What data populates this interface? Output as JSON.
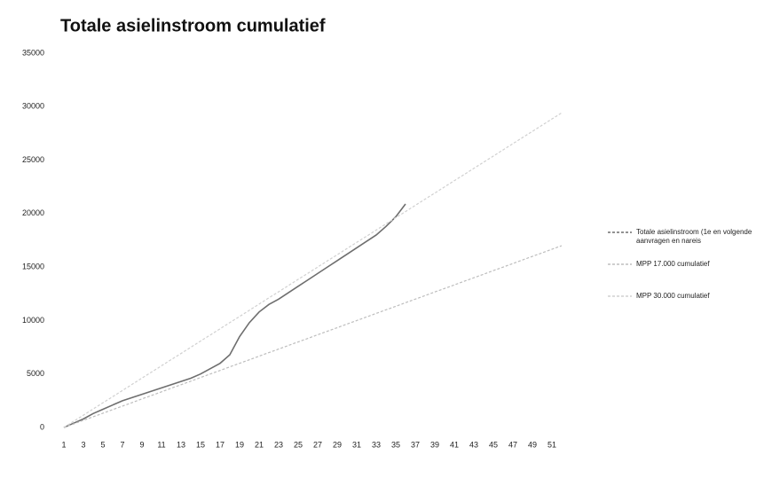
{
  "chart_data": {
    "type": "line",
    "title": "Totale asielinstroom cumulatief",
    "categories": [
      1,
      null,
      3,
      null,
      5,
      null,
      7,
      null,
      9,
      null,
      11,
      null,
      13,
      null,
      15,
      null,
      17,
      null,
      19,
      null,
      21,
      null,
      23,
      null,
      25,
      null,
      27,
      null,
      29,
      null,
      31,
      null,
      33,
      null,
      35,
      null,
      37,
      null,
      39,
      null,
      41,
      null,
      43,
      null,
      45,
      null,
      47,
      null,
      49,
      null,
      51,
      null
    ],
    "series": [
      {
        "name": "Totale asielinstroom (1e en volgende aanvragen en nareis",
        "color": "#6e6e6e",
        "values": [
          0,
          400,
          800,
          1300,
          1700,
          2100,
          2500,
          2800,
          3100,
          3400,
          3700,
          4000,
          4300,
          4600,
          5000,
          5500,
          6000,
          6800,
          8500,
          9800,
          10800,
          11500,
          12000,
          12600,
          13200,
          13800,
          14400,
          15000,
          15600,
          16200,
          16800,
          17400,
          18000,
          18800,
          19700,
          20900,
          null,
          null,
          null,
          null,
          null,
          null,
          null,
          null,
          null,
          null,
          null,
          null,
          null,
          null,
          null,
          null
        ]
      },
      {
        "name": "MPP 17.000 cumulatief",
        "color": "#bdbdbd",
        "values": [
          0,
          330,
          670,
          1000,
          1330,
          1670,
          2000,
          2330,
          2670,
          3000,
          3330,
          3670,
          4000,
          4330,
          4670,
          5000,
          5330,
          5670,
          6000,
          6330,
          6670,
          7000,
          7330,
          7670,
          8000,
          8330,
          8670,
          9000,
          9330,
          9670,
          10000,
          10330,
          10670,
          11000,
          11330,
          11670,
          12000,
          12330,
          12670,
          13000,
          13330,
          13670,
          14000,
          14330,
          14670,
          15000,
          15330,
          15670,
          16000,
          16330,
          16670,
          17000
        ]
      },
      {
        "name": "MPP 30.000 cumulatief",
        "color": "#d0d0d0",
        "values": [
          0,
          580,
          1150,
          1730,
          2310,
          2880,
          3460,
          4040,
          4620,
          5190,
          5770,
          6350,
          6920,
          7500,
          8080,
          8650,
          9230,
          9810,
          10380,
          10960,
          11540,
          12120,
          12690,
          13270,
          13850,
          14420,
          15000,
          15580,
          16150,
          16730,
          17310,
          17880,
          18460,
          19040,
          19620,
          20190,
          20770,
          21350,
          21920,
          22500,
          23080,
          23650,
          24230,
          24810,
          25380,
          25960,
          26540,
          27120,
          27690,
          28270,
          28850,
          29420
        ]
      }
    ],
    "ylim": [
      0,
      35000
    ],
    "yticks": [
      0,
      5000,
      10000,
      15000,
      20000,
      25000,
      30000,
      35000
    ],
    "grid": false,
    "legend": "right"
  }
}
